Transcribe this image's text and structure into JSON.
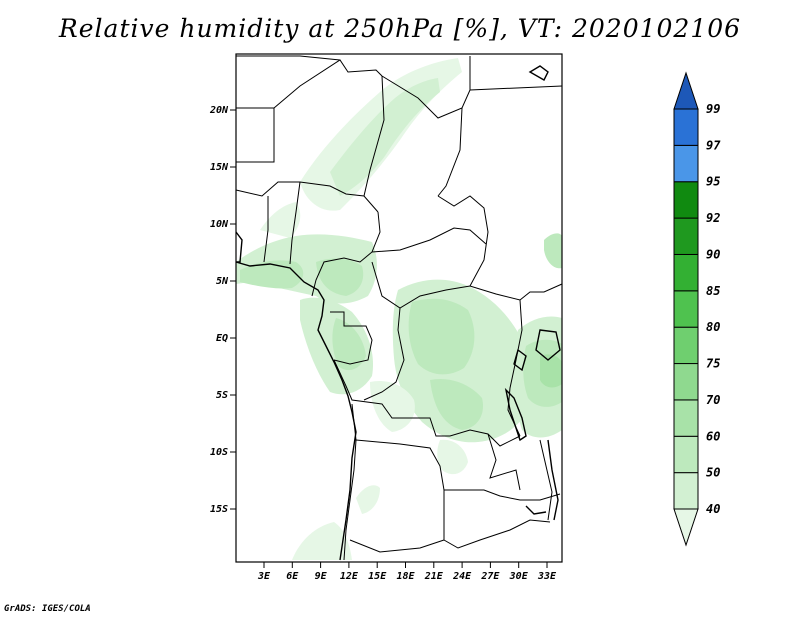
{
  "title": "Relative humidity at 250hPa [%], VT: 2020102106",
  "footer": "GrADS: IGES/COLA",
  "map": {
    "lat_labels": [
      "20N",
      "15N",
      "10N",
      "5N",
      "EQ",
      "5S",
      "10S",
      "15S"
    ],
    "lon_labels": [
      "3E",
      "6E",
      "9E",
      "12E",
      "15E",
      "18E",
      "21E",
      "24E",
      "27E",
      "30E",
      "33E"
    ]
  },
  "colorbar": {
    "labels": [
      "40",
      "50",
      "60",
      "70",
      "75",
      "80",
      "85",
      "90",
      "92",
      "95",
      "97",
      "99"
    ],
    "colors": [
      "#e6f7e6",
      "#d2f0d2",
      "#bde9bd",
      "#a8e2a8",
      "#8fd98f",
      "#6fcf6f",
      "#4fc24f",
      "#33b033",
      "#1f991f",
      "#108a10",
      "#4a96e8",
      "#2a72d6",
      "#1d58b8"
    ]
  }
}
